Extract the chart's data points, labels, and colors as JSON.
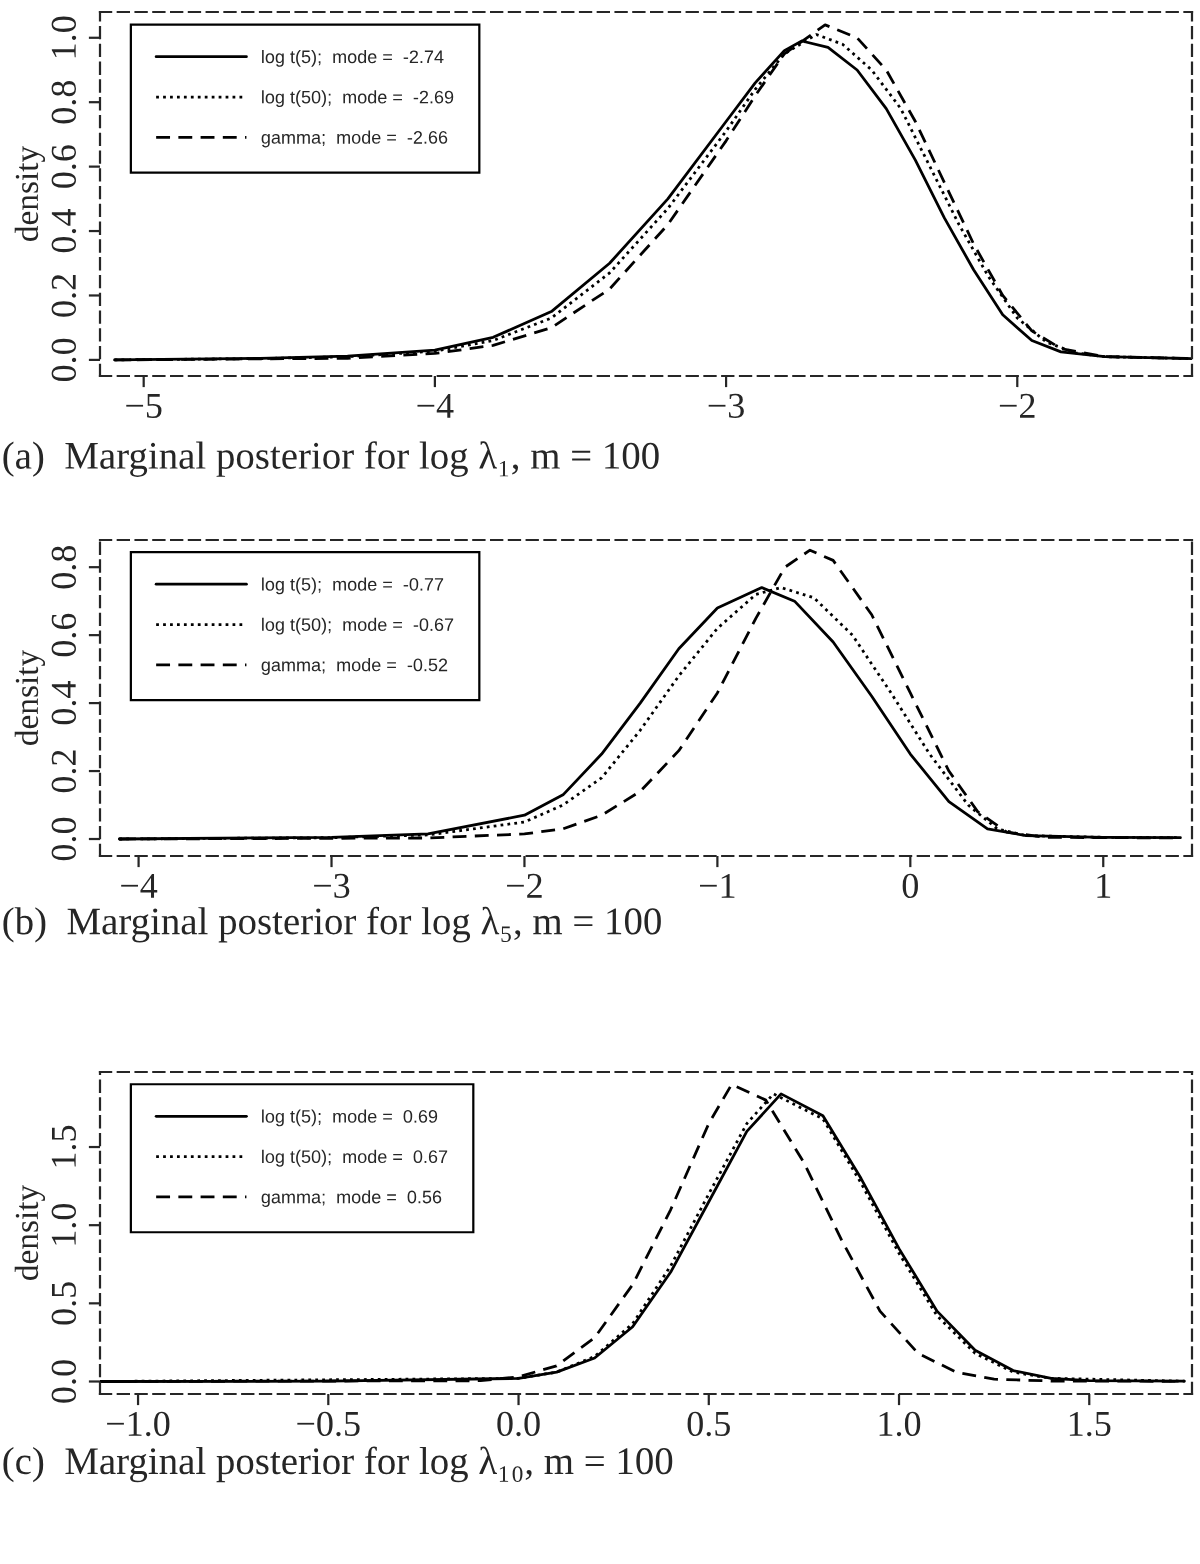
{
  "chart_data": [
    {
      "type": "line",
      "title": "(a)  Marginal posterior for log λ₁, m = 100",
      "ylabel": "density",
      "legend": "top left",
      "grid": false,
      "xlim": [
        -5.15,
        -1.4
      ],
      "ylim": [
        -0.05,
        1.08
      ],
      "xticks": [
        {
          "value": -5,
          "label": "−5"
        },
        {
          "value": -4,
          "label": "−4"
        },
        {
          "value": -3,
          "label": "−3"
        },
        {
          "value": -2,
          "label": "−2"
        }
      ],
      "yticks": [
        {
          "value": 0,
          "label": "0.0"
        },
        {
          "value": 0.2,
          "label": "0.2"
        },
        {
          "value": 0.4,
          "label": "0.4"
        },
        {
          "value": 0.6,
          "label": "0.6"
        },
        {
          "value": 0.8,
          "label": "0.8"
        },
        {
          "value": 1.0,
          "label": "1.0"
        }
      ],
      "series": [
        {
          "name": "log t(5);  mode =  -2.74",
          "color": "#000000",
          "line_style": "solid",
          "x": [
            -5.1,
            -4.6,
            -4.3,
            -4.0,
            -3.8,
            -3.6,
            -3.4,
            -3.2,
            -3.0,
            -2.9,
            -2.8,
            -2.74,
            -2.65,
            -2.55,
            -2.45,
            -2.35,
            -2.25,
            -2.15,
            -2.05,
            -1.95,
            -1.85,
            -1.7,
            -1.4
          ],
          "values": [
            0.0,
            0.005,
            0.012,
            0.03,
            0.07,
            0.15,
            0.3,
            0.5,
            0.74,
            0.86,
            0.96,
            0.99,
            0.97,
            0.9,
            0.78,
            0.62,
            0.44,
            0.28,
            0.14,
            0.06,
            0.025,
            0.01,
            0.004
          ]
        },
        {
          "name": "log t(50);  mode =  -2.69",
          "color": "#000000",
          "line_style": "dotted",
          "x": [
            -5.1,
            -4.6,
            -4.3,
            -4.0,
            -3.8,
            -3.6,
            -3.4,
            -3.2,
            -3.0,
            -2.9,
            -2.8,
            -2.69,
            -2.6,
            -2.5,
            -2.4,
            -2.3,
            -2.2,
            -2.1,
            -2.0,
            -1.9,
            -1.8,
            -1.7,
            -1.4
          ],
          "values": [
            0.0,
            0.004,
            0.01,
            0.027,
            0.06,
            0.13,
            0.27,
            0.47,
            0.71,
            0.84,
            0.95,
            1.01,
            0.98,
            0.9,
            0.78,
            0.6,
            0.42,
            0.26,
            0.13,
            0.055,
            0.022,
            0.01,
            0.004
          ]
        },
        {
          "name": "gamma;  mode =  -2.66",
          "color": "#000000",
          "line_style": "dashed",
          "x": [
            -5.1,
            -4.3,
            -4.0,
            -3.8,
            -3.6,
            -3.4,
            -3.2,
            -3.0,
            -2.9,
            -2.8,
            -2.66,
            -2.55,
            -2.45,
            -2.35,
            -2.25,
            -2.15,
            -2.05,
            -1.95,
            -1.85,
            -1.7,
            -1.4
          ],
          "values": [
            0.0,
            0.005,
            0.02,
            0.045,
            0.1,
            0.22,
            0.42,
            0.68,
            0.82,
            0.95,
            1.04,
            1.0,
            0.9,
            0.74,
            0.55,
            0.36,
            0.2,
            0.09,
            0.035,
            0.01,
            0.004
          ]
        }
      ]
    },
    {
      "type": "line",
      "title": "(b)  Marginal posterior for log λ₅, m = 100",
      "ylabel": "density",
      "legend": "top left",
      "grid": false,
      "xlim": [
        -4.2,
        1.46
      ],
      "ylim": [
        -0.05,
        0.88
      ],
      "xticks": [
        {
          "value": -4,
          "label": "−4"
        },
        {
          "value": -3,
          "label": "−3"
        },
        {
          "value": -2,
          "label": "−2"
        },
        {
          "value": -1,
          "label": "−1"
        },
        0,
        1
      ],
      "yticks": [
        {
          "value": 0,
          "label": "0.0"
        },
        {
          "value": 0.2,
          "label": "0.2"
        },
        {
          "value": 0.4,
          "label": "0.4"
        },
        {
          "value": 0.6,
          "label": "0.6"
        },
        {
          "value": 0.8,
          "label": "0.8"
        }
      ],
      "series": [
        {
          "name": "log t(5);  mode =  -0.77",
          "color": "#000000",
          "line_style": "solid",
          "x": [
            -4.1,
            -3.0,
            -2.5,
            -2.0,
            -1.8,
            -1.6,
            -1.4,
            -1.2,
            -1.0,
            -0.77,
            -0.6,
            -0.4,
            -0.2,
            0.0,
            0.2,
            0.4,
            0.6,
            1.0,
            1.4
          ],
          "values": [
            0.0,
            0.005,
            0.015,
            0.07,
            0.13,
            0.25,
            0.4,
            0.56,
            0.68,
            0.74,
            0.7,
            0.58,
            0.42,
            0.25,
            0.11,
            0.03,
            0.01,
            0.005,
            0.004
          ]
        },
        {
          "name": "log t(50);  mode =  -0.67",
          "color": "#000000",
          "line_style": "dotted",
          "x": [
            -4.1,
            -3.0,
            -2.5,
            -2.0,
            -1.8,
            -1.6,
            -1.4,
            -1.2,
            -1.0,
            -0.8,
            -0.67,
            -0.5,
            -0.3,
            -0.1,
            0.1,
            0.3,
            0.45,
            0.6,
            1.0,
            1.4
          ],
          "values": [
            0.0,
            0.004,
            0.012,
            0.05,
            0.1,
            0.18,
            0.32,
            0.48,
            0.62,
            0.72,
            0.74,
            0.71,
            0.6,
            0.43,
            0.25,
            0.1,
            0.03,
            0.01,
            0.005,
            0.004
          ]
        },
        {
          "name": "gamma;  mode =  -0.52",
          "color": "#000000",
          "line_style": "dashed",
          "x": [
            -4.1,
            -2.5,
            -2.0,
            -1.8,
            -1.6,
            -1.4,
            -1.2,
            -1.0,
            -0.8,
            -0.65,
            -0.52,
            -0.4,
            -0.2,
            0.0,
            0.2,
            0.35,
            0.5,
            0.7,
            1.4
          ],
          "values": [
            0.0,
            0.003,
            0.015,
            0.03,
            0.07,
            0.14,
            0.26,
            0.43,
            0.65,
            0.8,
            0.85,
            0.82,
            0.66,
            0.43,
            0.2,
            0.08,
            0.02,
            0.005,
            0.003
          ]
        }
      ]
    },
    {
      "type": "line",
      "title": "(c)  Marginal posterior for log λ₁₀, m = 100",
      "ylabel": "density",
      "legend": "top left",
      "grid": false,
      "xlim": [
        -1.1,
        1.77
      ],
      "ylim": [
        -0.08,
        1.98
      ],
      "xticks": [
        {
          "value": -1.0,
          "label": "−1.0"
        },
        {
          "value": -0.5,
          "label": "−0.5"
        },
        {
          "value": 0.0,
          "label": "0.0"
        },
        {
          "value": 0.5,
          "label": "0.5"
        },
        {
          "value": 1.0,
          "label": "1.0"
        },
        {
          "value": 1.5,
          "label": "1.5"
        }
      ],
      "yticks": [
        {
          "value": 0,
          "label": "0.0"
        },
        {
          "value": 0.5,
          "label": "0.5"
        },
        {
          "value": 1.0,
          "label": "1.0"
        },
        {
          "value": 1.5,
          "label": "1.5"
        }
      ],
      "series": [
        {
          "name": "log t(5);  mode =  0.69",
          "color": "#000000",
          "line_style": "solid",
          "x": [
            -1.1,
            -0.5,
            0.0,
            0.1,
            0.2,
            0.3,
            0.4,
            0.5,
            0.6,
            0.69,
            0.8,
            0.9,
            1.0,
            1.1,
            1.2,
            1.3,
            1.4,
            1.5,
            1.75
          ],
          "values": [
            0.0,
            0.002,
            0.02,
            0.06,
            0.15,
            0.35,
            0.7,
            1.15,
            1.6,
            1.84,
            1.7,
            1.3,
            0.85,
            0.45,
            0.2,
            0.07,
            0.02,
            0.005,
            0.002
          ]
        },
        {
          "name": "log t(50);  mode =  0.67",
          "color": "#000000",
          "line_style": "dotted",
          "x": [
            -1.1,
            0.0,
            0.1,
            0.2,
            0.3,
            0.4,
            0.5,
            0.6,
            0.67,
            0.8,
            0.9,
            1.0,
            1.1,
            1.2,
            1.3,
            1.4,
            1.75
          ],
          "values": [
            0.0,
            0.02,
            0.06,
            0.16,
            0.37,
            0.74,
            1.2,
            1.65,
            1.84,
            1.68,
            1.27,
            0.82,
            0.42,
            0.18,
            0.06,
            0.02,
            0.002
          ]
        },
        {
          "name": "gamma;  mode =  0.56",
          "color": "#000000",
          "line_style": "dashed",
          "x": [
            -1.1,
            -0.1,
            0.0,
            0.1,
            0.2,
            0.3,
            0.4,
            0.5,
            0.56,
            0.65,
            0.75,
            0.85,
            0.95,
            1.05,
            1.15,
            1.25,
            1.4,
            1.75
          ],
          "values": [
            0.0,
            0.005,
            0.03,
            0.1,
            0.28,
            0.62,
            1.1,
            1.65,
            1.9,
            1.8,
            1.4,
            0.9,
            0.45,
            0.18,
            0.06,
            0.015,
            0.003,
            0.001
          ]
        }
      ]
    }
  ]
}
